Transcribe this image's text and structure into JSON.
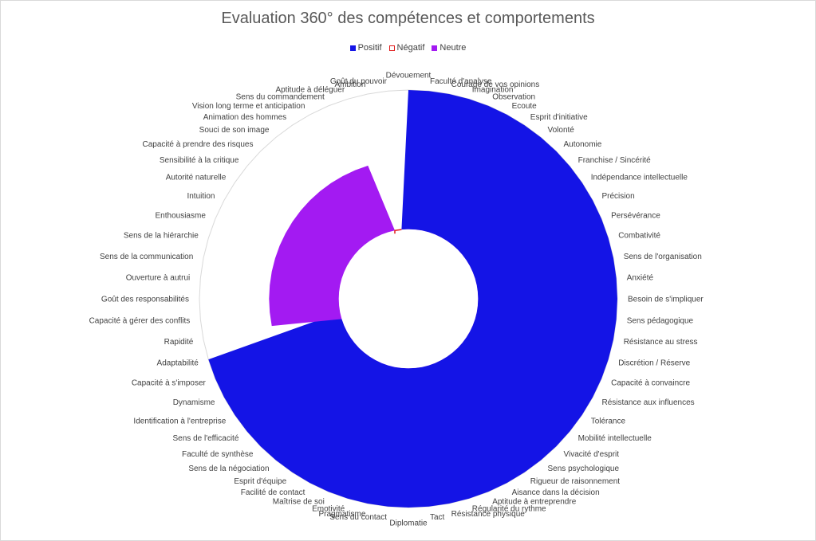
{
  "chart_data": {
    "type": "area",
    "polar": true,
    "title": "Evaluation 360° des compétences et comportements",
    "legend": "top",
    "grid": false,
    "rlim": [
      -1,
      2
    ],
    "categories": [
      "Dévouement",
      "Faculté d'analyse",
      "Courage de vos opinions",
      "Imagination",
      "Observation",
      "Ecoute",
      "Esprit d'initiative",
      "Volonté",
      "Autonomie",
      "Franchise / Sincérité",
      "Indépendance intellectuelle",
      "Précision",
      "Persévérance",
      "Combativité",
      "Sens de l'organisation",
      "Anxiété",
      "Besoin de s'impliquer",
      "Sens pédagogique",
      "Résistance au stress",
      "Discrétion / Réserve",
      "Capacité à convaincre",
      "Résistance aux influences",
      "Tolérance",
      "Mobilité intellectuelle",
      "Vivacité d'esprit",
      "Sens psychologique",
      "Rigueur de raisonnement",
      "Aisance dans la décision",
      "Aptitude à entreprendre",
      "Régularité du rythme",
      "Résistance physique",
      "Tact",
      "Diplomatie",
      "Sens du contact",
      "Pragmatisme",
      "Emotivité",
      "Maîtrise de soi",
      "Facilité de contact",
      "Esprit d'équipe",
      "Sens de la négociation",
      "Faculté de synthèse",
      "Sens de l'efficacité",
      "Identification à l'entreprise",
      "Dynamisme",
      "Capacité à s'imposer",
      "Adaptabilité",
      "Rapidité",
      "Capacité à gérer des conflits",
      "Goût des responsabilités",
      "Ouverture à autrui",
      "Sens de la communication",
      "Sens de la hiérarchie",
      "Enthousiasme",
      "Intuition",
      "Autorité naturelle",
      "Sensibilité à la critique",
      "Capacité à prendre des risques",
      "Souci de son image",
      "Animation des hommes",
      "Vision long terme et anticipation",
      "Sens du commandement",
      "Aptitude à déléguer",
      "Ambition",
      "Goût du pouvoir"
    ],
    "series": [
      {
        "name": "Positif",
        "color": "#1414E6",
        "values": [
          2,
          2,
          2,
          2,
          2,
          2,
          2,
          2,
          2,
          2,
          2,
          2,
          2,
          2,
          2,
          2,
          2,
          2,
          2,
          2,
          2,
          2,
          2,
          2,
          2,
          2,
          2,
          2,
          2,
          2,
          2,
          2,
          2,
          2,
          2,
          2,
          2,
          2,
          2,
          2,
          2,
          2,
          2,
          2,
          2,
          2,
          0,
          0,
          0,
          0,
          0,
          0,
          0,
          0,
          0,
          0,
          0,
          0,
          0,
          0,
          0,
          0,
          0,
          0
        ]
      },
      {
        "name": "Négatif",
        "color": "#E01A1A",
        "values": [
          0,
          0,
          0,
          0,
          0,
          0,
          0,
          0,
          0,
          0,
          0,
          0,
          0,
          0,
          0,
          0,
          0,
          0,
          0,
          0,
          0,
          0,
          0,
          0,
          0,
          0,
          0,
          0,
          0,
          0,
          0,
          0,
          0,
          0,
          0,
          0,
          0,
          0,
          0,
          0,
          0,
          0,
          0,
          0,
          0,
          0,
          0,
          0,
          0,
          0,
          0,
          0,
          0,
          0,
          0,
          0,
          0,
          0,
          0,
          0,
          0,
          0,
          0,
          0
        ]
      },
      {
        "name": "Neutre",
        "color": "#A31AF2",
        "values": [
          0,
          0,
          0,
          0,
          0,
          0,
          0,
          0,
          0,
          0,
          0,
          0,
          0,
          0,
          0,
          0,
          0,
          0,
          0,
          0,
          0,
          0,
          0,
          0,
          0,
          0,
          0,
          0,
          0,
          0,
          0,
          0,
          0,
          0,
          0,
          0,
          0,
          0,
          0,
          0,
          0,
          0,
          0,
          0,
          0,
          0,
          1,
          1,
          1,
          1,
          1,
          1,
          1,
          1,
          1,
          1,
          1,
          1,
          1,
          1,
          1,
          1,
          0,
          0
        ]
      }
    ]
  }
}
